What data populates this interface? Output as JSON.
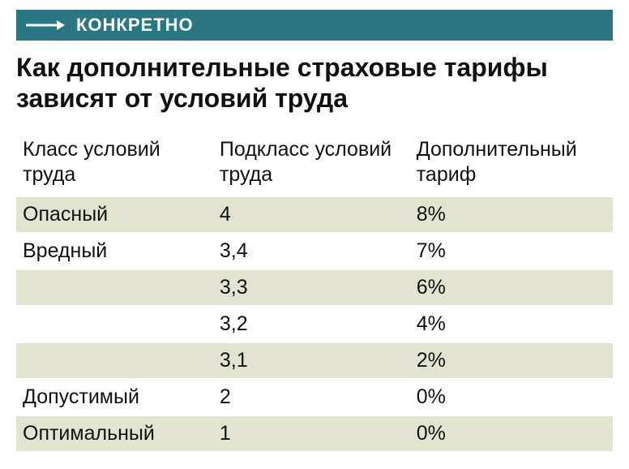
{
  "banner": {
    "label": "КОНКРЕТНО",
    "bg_color": "#2a7784",
    "text_color": "#ffffff",
    "arrow_color": "#ffffff"
  },
  "title": "Как дополнительные страховые тарифы зависят от условий труда",
  "table": {
    "columns": [
      "Класс условий труда",
      "Подкласс условий труда",
      "Дополнительный тариф"
    ],
    "rows": [
      {
        "class": "Опасный",
        "subclass": "4",
        "rate": "8%",
        "shaded": true
      },
      {
        "class": "Вредный",
        "subclass": "3,4",
        "rate": "7%",
        "shaded": false
      },
      {
        "class": "",
        "subclass": "3,3",
        "rate": "6%",
        "shaded": true
      },
      {
        "class": "",
        "subclass": "3,2",
        "rate": "4%",
        "shaded": false
      },
      {
        "class": "",
        "subclass": "3,1",
        "rate": "2%",
        "shaded": true
      },
      {
        "class": "Допустимый",
        "subclass": "2",
        "rate": "0%",
        "shaded": false
      },
      {
        "class": "Оптимальный",
        "subclass": "1",
        "rate": "0%",
        "shaded": true
      }
    ],
    "shaded_bg": "#e3e4cf",
    "plain_bg": "#ffffff",
    "font_size": 25,
    "header_font_size": 25
  }
}
